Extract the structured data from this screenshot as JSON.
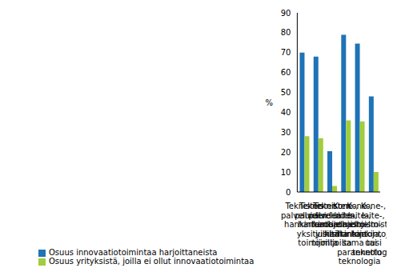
{
  "chart_data": {
    "type": "bar",
    "y_label": "%",
    "categories": [
      "Teknisten palveluiden hankintaa",
      "Teknisten palveluiden hankintaa yksityisiltä toimijoilta",
      "Teknisten palveluiden hankintaa julkisilta toimijoilta",
      "Kone-, laite-, ohjelmisto-hankintoja",
      "Kone-, laite-, ohjelmisto-hankintoja, sama tai parannettu teknologia",
      "Kone-, laite-, ohjelmisto-hankintoja, uusi teknologia"
    ],
    "series": [
      {
        "name": "Osuus innovaatiotoimintaa harjoittaneista",
        "color": "#1f73b7",
        "values": [
          70,
          68,
          20.5,
          79,
          74.5,
          48
        ]
      },
      {
        "name": "Osuus yrityksistä, joilla ei ollut innovaatiotoimintaa",
        "color": "#a2cd3c",
        "values": [
          28,
          27,
          3,
          36,
          35.5,
          10
        ]
      }
    ],
    "ylim": [
      0,
      90
    ],
    "yticks": [
      0,
      10,
      20,
      30,
      40,
      50,
      60,
      70,
      80,
      90
    ],
    "grid": false,
    "legend": "bottom"
  }
}
